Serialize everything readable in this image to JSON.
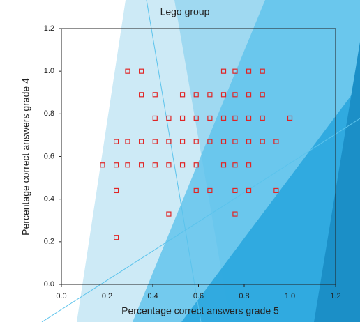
{
  "chart_data": {
    "type": "scatter",
    "title": "Lego group",
    "x_label": "Percentage correct answers grade 5",
    "y_label": "Percentage correct answers grade 4",
    "color": "#e02424",
    "x": [
      0.29,
      0.35,
      0.71,
      0.76,
      0.82,
      0.88,
      0.35,
      0.41,
      0.53,
      0.59,
      0.65,
      0.71,
      0.76,
      0.82,
      0.88,
      0.41,
      0.47,
      0.53,
      0.59,
      0.65,
      0.71,
      0.76,
      0.82,
      0.88,
      1.0,
      0.24,
      0.29,
      0.35,
      0.41,
      0.47,
      0.53,
      0.59,
      0.65,
      0.71,
      0.76,
      0.82,
      0.88,
      0.94,
      0.18,
      0.24,
      0.29,
      0.35,
      0.41,
      0.47,
      0.53,
      0.59,
      0.71,
      0.76,
      0.82,
      0.24,
      0.59,
      0.65,
      0.76,
      0.82,
      0.94,
      0.47,
      0.76,
      0.24
    ],
    "y": [
      1.0,
      1.0,
      1.0,
      1.0,
      1.0,
      1.0,
      0.89,
      0.89,
      0.89,
      0.89,
      0.89,
      0.89,
      0.89,
      0.89,
      0.89,
      0.78,
      0.78,
      0.78,
      0.78,
      0.78,
      0.78,
      0.78,
      0.78,
      0.78,
      0.78,
      0.67,
      0.67,
      0.67,
      0.67,
      0.67,
      0.67,
      0.67,
      0.67,
      0.67,
      0.67,
      0.67,
      0.67,
      0.67,
      0.56,
      0.56,
      0.56,
      0.56,
      0.56,
      0.56,
      0.56,
      0.56,
      0.56,
      0.56,
      0.56,
      0.44,
      0.44,
      0.44,
      0.44,
      0.44,
      0.44,
      0.33,
      0.33,
      0.22
    ],
    "xlim": [
      0,
      1.2
    ],
    "ylim": [
      0,
      1.2
    ],
    "xticks": [
      {
        "value": 0,
        "label": "0.0"
      },
      0.2,
      0.4,
      0.6,
      0.8,
      {
        "value": 1,
        "label": "1.0"
      },
      1.2
    ],
    "yticks": [
      {
        "value": 0,
        "label": "0.0"
      },
      0.2,
      0.4,
      0.6,
      0.8,
      {
        "value": 1,
        "label": "1.0"
      },
      1.2
    ]
  }
}
